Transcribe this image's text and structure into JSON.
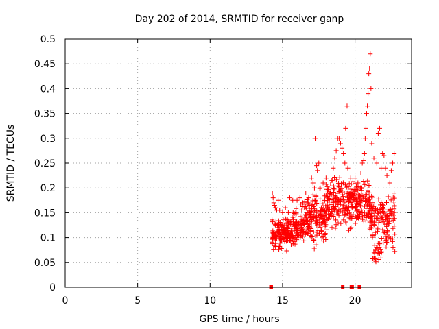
{
  "chart_data": {
    "type": "scatter",
    "title": "Day 202 of 2014, SRMTID for receiver ganp",
    "xlabel": "GPS time / hours",
    "ylabel": "SRMTID / TECUs",
    "xlim": [
      0,
      23.9
    ],
    "ylim": [
      0,
      0.5
    ],
    "xticks": [
      0,
      5,
      10,
      15,
      20
    ],
    "yticks": [
      0,
      0.05,
      0.1,
      0.15,
      0.2,
      0.25,
      0.3,
      0.35,
      0.4,
      0.45,
      0.5
    ],
    "xtick_labels": [
      "0",
      "5",
      "10",
      "15",
      "20"
    ],
    "ytick_labels": [
      "0",
      "0.05",
      "0.1",
      "0.15",
      "0.2",
      "0.25",
      "0.3",
      "0.35",
      "0.4",
      "0.45",
      "0.5"
    ],
    "grid": true,
    "marker": "+",
    "color": "#ff0000",
    "series": [
      {
        "name": "SRMTID",
        "zero_points": [
          [
            14.2,
            0
          ],
          [
            14.22,
            0
          ],
          [
            19.15,
            0
          ],
          [
            19.75,
            0
          ],
          [
            19.8,
            0
          ],
          [
            20.3,
            0
          ]
        ],
        "points": [
          [
            14.3,
            0.19
          ],
          [
            14.35,
            0.18
          ],
          [
            14.4,
            0.17
          ],
          [
            14.45,
            0.165
          ],
          [
            14.5,
            0.16
          ],
          [
            14.6,
            0.155
          ],
          [
            14.7,
            0.175
          ],
          [
            14.8,
            0.155
          ],
          [
            15.0,
            0.15
          ],
          [
            15.2,
            0.16
          ],
          [
            15.4,
            0.15
          ],
          [
            15.5,
            0.18
          ],
          [
            15.7,
            0.175
          ],
          [
            15.9,
            0.15
          ],
          [
            16.0,
            0.175
          ],
          [
            16.2,
            0.18
          ],
          [
            16.4,
            0.17
          ],
          [
            16.6,
            0.19
          ],
          [
            16.8,
            0.18
          ],
          [
            17.0,
            0.22
          ],
          [
            17.1,
            0.21
          ],
          [
            17.2,
            0.2
          ],
          [
            17.25,
            0.3
          ],
          [
            17.3,
            0.3
          ],
          [
            17.35,
            0.245
          ],
          [
            17.4,
            0.235
          ],
          [
            17.5,
            0.25
          ],
          [
            17.6,
            0.2
          ],
          [
            17.8,
            0.21
          ],
          [
            18.0,
            0.22
          ],
          [
            18.2,
            0.2
          ],
          [
            18.4,
            0.215
          ],
          [
            18.5,
            0.24
          ],
          [
            18.6,
            0.26
          ],
          [
            18.7,
            0.275
          ],
          [
            18.8,
            0.3
          ],
          [
            18.9,
            0.3
          ],
          [
            19.0,
            0.29
          ],
          [
            19.1,
            0.28
          ],
          [
            19.2,
            0.27
          ],
          [
            19.3,
            0.25
          ],
          [
            19.35,
            0.32
          ],
          [
            19.45,
            0.365
          ],
          [
            19.5,
            0.24
          ],
          [
            19.7,
            0.22
          ],
          [
            20.0,
            0.22
          ],
          [
            20.2,
            0.21
          ],
          [
            20.4,
            0.23
          ],
          [
            20.5,
            0.25
          ],
          [
            20.6,
            0.255
          ],
          [
            20.65,
            0.27
          ],
          [
            20.7,
            0.3
          ],
          [
            20.75,
            0.32
          ],
          [
            20.8,
            0.35
          ],
          [
            20.85,
            0.365
          ],
          [
            20.9,
            0.39
          ],
          [
            20.95,
            0.43
          ],
          [
            21.0,
            0.44
          ],
          [
            21.05,
            0.47
          ],
          [
            21.1,
            0.4
          ],
          [
            21.15,
            0.29
          ],
          [
            21.3,
            0.26
          ],
          [
            21.5,
            0.25
          ],
          [
            21.6,
            0.31
          ],
          [
            21.7,
            0.32
          ],
          [
            21.8,
            0.24
          ],
          [
            21.9,
            0.27
          ],
          [
            22.0,
            0.265
          ],
          [
            22.1,
            0.24
          ],
          [
            22.2,
            0.225
          ],
          [
            22.4,
            0.21
          ],
          [
            22.5,
            0.235
          ],
          [
            22.6,
            0.25
          ],
          [
            22.7,
            0.27
          ]
        ],
        "cloud": {
          "x_range": [
            14.25,
            22.75
          ],
          "y_range": [
            0.04,
            0.3
          ]
        }
      }
    ]
  }
}
